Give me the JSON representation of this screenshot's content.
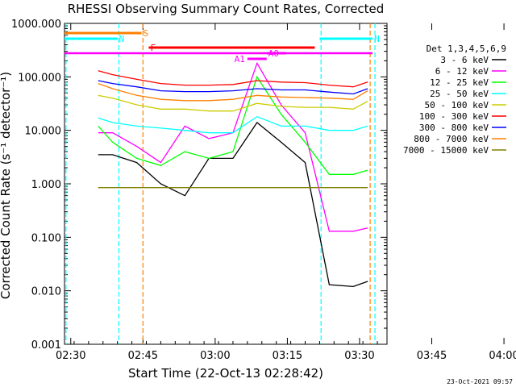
{
  "chart_data": {
    "type": "line",
    "title": "RHESSI Observing Summary Count Rates, Corrected",
    "xlabel": "Start Time (22-Oct-13 02:28:42)",
    "ylabel": "Corrected Count Rate (s⁻¹ detector⁻¹)",
    "x_ticks": [
      "02:30",
      "02:45",
      "03:00",
      "03:15",
      "03:30",
      "03:45",
      "04:00"
    ],
    "y_ticks": [
      "0.001",
      "0.010",
      "0.100",
      "1.000",
      "10.000",
      "100.000",
      "1000.000"
    ],
    "y_scale": "log",
    "ylim": [
      0.001,
      1000
    ],
    "xlim_minutes_after_start": [
      0,
      67
    ],
    "legend_title": "Det 1,3,4,5,6,9",
    "legend_position": "right",
    "x_minutes_after_start": [
      7,
      10,
      15,
      20,
      25,
      30,
      35,
      40,
      45,
      50,
      55,
      60,
      63
    ],
    "series": [
      {
        "name": "3 - 6 keV",
        "color": "#000000",
        "values": [
          3.5,
          3.5,
          2.5,
          1.0,
          0.6,
          3.0,
          3.0,
          14.0,
          6.0,
          2.5,
          0.013,
          0.012,
          0.015
        ]
      },
      {
        "name": "6 - 12 keV",
        "color": "#ff00ff",
        "values": [
          9,
          9,
          5,
          2.5,
          12,
          7,
          9,
          180,
          30,
          9,
          0.13,
          0.13,
          0.15
        ]
      },
      {
        "name": "12 - 25 keV",
        "color": "#00ff00",
        "values": [
          12,
          6,
          3,
          2.2,
          4,
          3,
          4,
          100,
          20,
          6,
          1.5,
          1.5,
          1.8
        ]
      },
      {
        "name": "25 - 50 keV",
        "color": "#00ffff",
        "values": [
          17,
          14,
          12,
          11,
          10,
          9,
          9,
          18,
          12,
          12,
          10,
          10,
          12
        ]
      },
      {
        "name": "50 - 100 keV",
        "color": "#cccc00",
        "values": [
          45,
          40,
          30,
          25,
          25,
          23,
          23,
          32,
          28,
          27,
          27,
          25,
          35
        ]
      },
      {
        "name": "100 - 300 keV",
        "color": "#ff0000",
        "values": [
          130,
          110,
          90,
          75,
          70,
          70,
          72,
          85,
          80,
          78,
          70,
          65,
          80
        ]
      },
      {
        "name": "300 - 800 keV",
        "color": "#0000ff",
        "values": [
          85,
          75,
          65,
          55,
          53,
          53,
          55,
          60,
          57,
          57,
          52,
          48,
          60
        ]
      },
      {
        "name": "800 - 7000 keV",
        "color": "#ff8000",
        "values": [
          75,
          60,
          45,
          38,
          36,
          36,
          38,
          45,
          42,
          41,
          40,
          38,
          55
        ]
      },
      {
        "name": "7000 - 15000 keV",
        "color": "#808000",
        "values": [
          0.85,
          0.85,
          0.85,
          0.85,
          0.85,
          0.85,
          0.85,
          0.85,
          0.85,
          0.85,
          0.85,
          0.85,
          0.85
        ]
      }
    ],
    "flags": [
      {
        "label": "S",
        "color": "#ff8000",
        "start_min": 0,
        "end_min": 16
      },
      {
        "label": "N",
        "color": "#00ffff",
        "start_min": 0,
        "end_min": 11
      },
      {
        "label": "N",
        "color": "#00ffff",
        "start_min": 53,
        "end_min": 64
      },
      {
        "label": "F",
        "color": "#ff0000",
        "start_min": 17.5,
        "end_min": 52
      },
      {
        "label": "A0",
        "color": "#ff00ff",
        "start_min": 42,
        "end_min": 46
      },
      {
        "label": "A1",
        "color": "#ff00ff",
        "start_min": 38,
        "end_min": 42
      },
      {
        "label": "",
        "color": "#ff00ff",
        "start_min": 0,
        "end_min": 64
      }
    ],
    "vertical_markers": [
      {
        "minute": 0.3,
        "color": "#00ffff"
      },
      {
        "minute": 11.3,
        "color": "#00ffff"
      },
      {
        "minute": 16.3,
        "color": "#ff8000"
      },
      {
        "minute": 53.3,
        "color": "#00ffff"
      },
      {
        "minute": 63.5,
        "color": "#ff8000"
      },
      {
        "minute": 64.5,
        "color": "#00ffff"
      }
    ]
  },
  "footer_date": "23-Oct-2021 09:57"
}
